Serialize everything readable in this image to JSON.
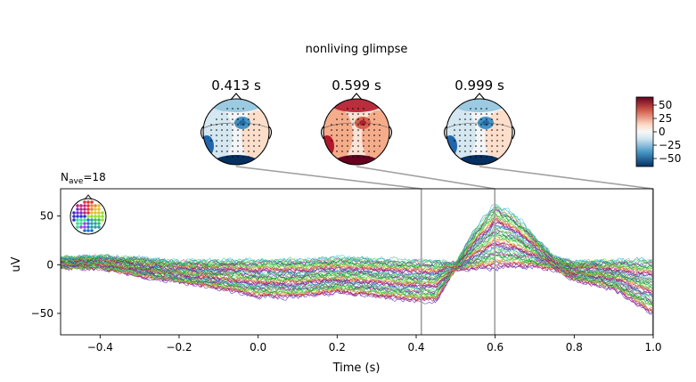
{
  "figure": {
    "title": "nonliving glimpse",
    "nave_base": "N",
    "nave_sub": "ave",
    "nave_value": "=18"
  },
  "colors": {
    "axis": "#000000",
    "marker_line": "#a0a0a0",
    "cmap_low": "#053061",
    "cmap_mid": "#f7f7f7",
    "cmap_high": "#67001f"
  },
  "topomaps": [
    {
      "label": "0.413 s",
      "time": 0.413,
      "pattern": "blue-front-mid",
      "icon": "head-topomap"
    },
    {
      "label": "0.599 s",
      "time": 0.599,
      "pattern": "red-front-strong",
      "icon": "head-topomap"
    },
    {
      "label": "0.999 s",
      "time": 0.999,
      "pattern": "blue-front-mid",
      "icon": "head-topomap"
    }
  ],
  "colorbar": {
    "ticks": [
      "50",
      "25",
      "0",
      "−25",
      "−50"
    ],
    "tick_values": [
      50,
      25,
      0,
      -25,
      -50
    ],
    "range": [
      -65,
      65
    ]
  },
  "chart_data": {
    "type": "line",
    "title": "",
    "xlabel": "Time (s)",
    "ylabel": "uV",
    "xlim": [
      -0.5,
      1.0
    ],
    "ylim": [
      -72,
      78
    ],
    "x_ticks": [
      -0.4,
      -0.2,
      0.0,
      0.2,
      0.4,
      0.6,
      0.8,
      1.0
    ],
    "x_tick_labels": [
      "−0.4",
      "−0.2",
      "0.0",
      "0.2",
      "0.4",
      "0.6",
      "0.8",
      "1.0"
    ],
    "y_ticks": [
      -50,
      0,
      50
    ],
    "y_tick_labels": [
      "−50",
      "0",
      "50"
    ],
    "marker_times": [
      0.413,
      0.599,
      0.999
    ],
    "grid": false,
    "legend": "top-left spatial colour head inset",
    "series_count": 60,
    "envelope": {
      "x": [
        -0.5,
        -0.4,
        -0.3,
        -0.2,
        -0.1,
        0.0,
        0.1,
        0.2,
        0.3,
        0.4,
        0.45,
        0.5,
        0.55,
        0.6,
        0.65,
        0.7,
        0.75,
        0.8,
        0.9,
        1.0
      ],
      "max": [
        8,
        10,
        8,
        5,
        7,
        8,
        8,
        10,
        9,
        8,
        8,
        2,
        40,
        68,
        55,
        32,
        8,
        4,
        6,
        10
      ],
      "min": [
        -5,
        -6,
        -15,
        -22,
        -30,
        -40,
        -40,
        -35,
        -40,
        -45,
        -45,
        -5,
        -12,
        -15,
        -12,
        -8,
        -6,
        -18,
        -30,
        -62
      ]
    }
  }
}
